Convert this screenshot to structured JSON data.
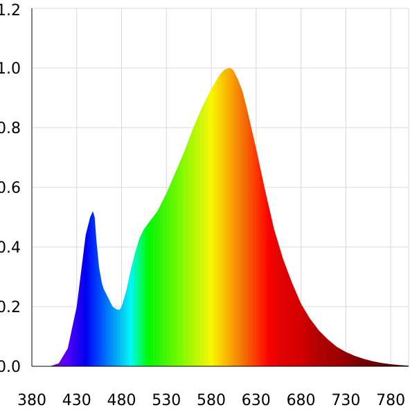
{
  "chart_data": {
    "type": "area",
    "title": "",
    "xlabel": "",
    "ylabel": "",
    "xlim": [
      380,
      800
    ],
    "ylim": [
      0,
      1.2
    ],
    "grid": true,
    "legend": "none",
    "x_ticks": [
      "380",
      "430",
      "480",
      "530",
      "580",
      "630",
      "680",
      "730",
      "780"
    ],
    "y_ticks": [
      "0.0",
      "0.2",
      "0.4",
      "0.6",
      "0.8",
      "1.0",
      "1.2"
    ],
    "fill": "visible-spectrum-rainbow",
    "series": [
      {
        "x": [
          380,
          400,
          410,
          420,
          430,
          435,
          440,
          445,
          448,
          450,
          452,
          455,
          458,
          460,
          465,
          470,
          475,
          478,
          480,
          485,
          490,
          495,
          500,
          505,
          510,
          515,
          520,
          530,
          540,
          550,
          560,
          570,
          580,
          590,
          595,
          600,
          603,
          605,
          610,
          615,
          620,
          630,
          640,
          650,
          660,
          670,
          680,
          690,
          700,
          710,
          720,
          730,
          740,
          750,
          760,
          770,
          780,
          790,
          800
        ],
        "y": [
          0.0,
          0.0,
          0.01,
          0.06,
          0.2,
          0.32,
          0.44,
          0.5,
          0.52,
          0.5,
          0.42,
          0.33,
          0.28,
          0.26,
          0.23,
          0.2,
          0.19,
          0.19,
          0.2,
          0.25,
          0.32,
          0.38,
          0.43,
          0.46,
          0.48,
          0.5,
          0.52,
          0.58,
          0.65,
          0.72,
          0.8,
          0.87,
          0.93,
          0.98,
          0.995,
          1.0,
          0.997,
          0.99,
          0.96,
          0.92,
          0.86,
          0.73,
          0.59,
          0.46,
          0.36,
          0.28,
          0.21,
          0.16,
          0.12,
          0.09,
          0.065,
          0.048,
          0.035,
          0.025,
          0.017,
          0.011,
          0.007,
          0.004,
          0.002
        ]
      }
    ]
  }
}
